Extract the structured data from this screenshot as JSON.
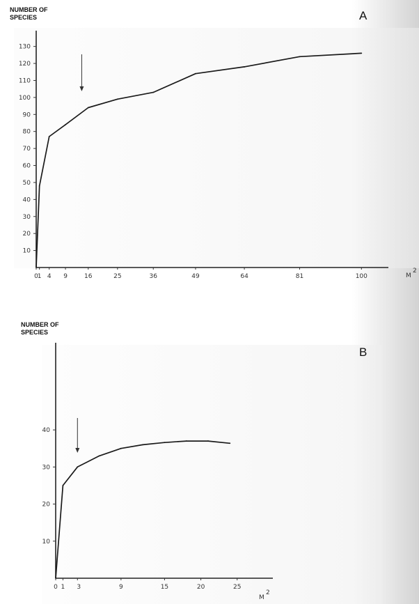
{
  "chart_data": [
    {
      "type": "line",
      "panel_label": "A",
      "ylabel": "NUMBER OF\nSPECIES",
      "xlabel": "M",
      "xlabel_exponent": "2",
      "x_ticks": [
        0,
        1,
        4,
        9,
        16,
        25,
        36,
        49,
        64,
        81,
        100
      ],
      "y_ticks": [
        10,
        20,
        30,
        40,
        50,
        60,
        70,
        80,
        90,
        100,
        110,
        120,
        130
      ],
      "xlim": [
        0,
        104
      ],
      "ylim": [
        0,
        136
      ],
      "x": [
        0,
        1,
        4,
        9,
        16,
        25,
        36,
        49,
        64,
        81,
        100
      ],
      "y": [
        0,
        48,
        77,
        84,
        94,
        99,
        103,
        114,
        118,
        124,
        126
      ],
      "arrow_x": 14
    },
    {
      "type": "line",
      "panel_label": "B",
      "ylabel": "NUMBER OF\nSPECIES",
      "xlabel": "M",
      "xlabel_exponent": "2",
      "x_ticks": [
        0,
        1,
        3,
        9,
        15,
        20,
        25
      ],
      "y_ticks": [
        10,
        20,
        30,
        40
      ],
      "xlim": [
        0,
        28
      ],
      "ylim": [
        0,
        62
      ],
      "x": [
        0,
        1,
        3,
        6,
        9,
        12,
        15,
        18,
        21,
        24
      ],
      "y": [
        0,
        25,
        30,
        33,
        35,
        36,
        36.6,
        37,
        37,
        36.4
      ],
      "arrow_x": 3
    }
  ]
}
